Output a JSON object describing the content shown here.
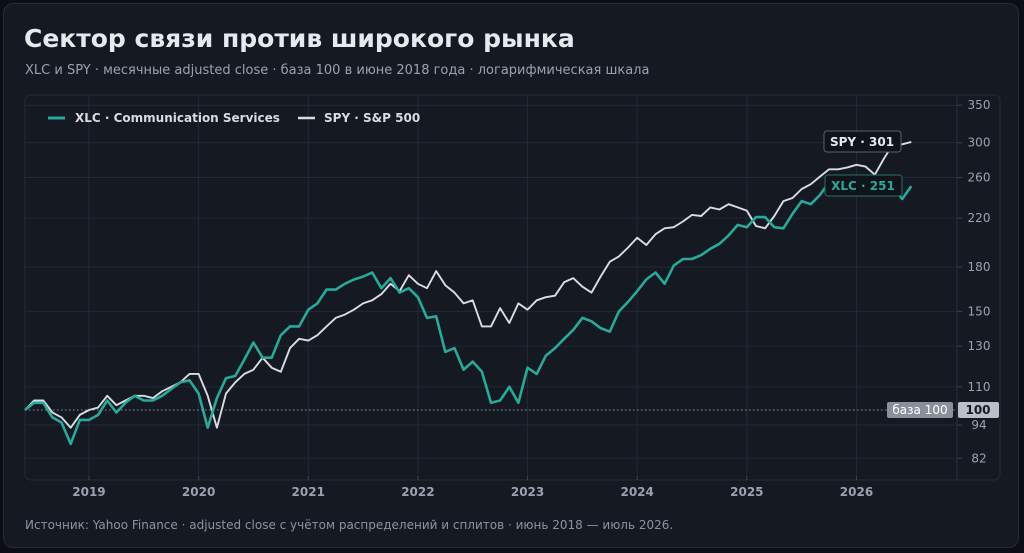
{
  "title": "Сектор связи против широкого рынка",
  "subtitle": "XLC и SPY · месячные adjusted close · база 100 в июне 2018 года · логарифмическая шкала",
  "footer": "Источник: Yahoo Finance · adjusted close с учётом распределений и сплитов · июнь 2018 — июль 2026.",
  "colors": {
    "background": "#151922",
    "xlc": "#2aa89a",
    "spy": "#d9dce3",
    "grid": "#232935",
    "text": "#9aa2b1"
  },
  "chart_data": {
    "type": "line",
    "y_scale": "log",
    "ylim": [
      75,
      365
    ],
    "xlim": [
      "2018-06",
      "2026-12"
    ],
    "grid": true,
    "legend_position": "top-left",
    "y_ticks": [
      82,
      94,
      100,
      110,
      130,
      150,
      180,
      220,
      260,
      300,
      350
    ],
    "y_tick_labels": [
      "82",
      "94",
      "100",
      "110",
      "130",
      "150",
      "180",
      "220",
      "260",
      "300",
      "350"
    ],
    "x_ticks": [
      "2019-01",
      "2020-01",
      "2021-01",
      "2022-01",
      "2023-01",
      "2024-01",
      "2025-01",
      "2026-01"
    ],
    "x_tick_labels": [
      "2019",
      "2020",
      "2021",
      "2022",
      "2023",
      "2024",
      "2025",
      "2026"
    ],
    "baseline": {
      "value": 100,
      "label": "база 100",
      "value_label": "100"
    },
    "dates": [
      "2018-06",
      "2018-07",
      "2018-08",
      "2018-09",
      "2018-10",
      "2018-11",
      "2018-12",
      "2019-01",
      "2019-02",
      "2019-03",
      "2019-04",
      "2019-05",
      "2019-06",
      "2019-07",
      "2019-08",
      "2019-09",
      "2019-10",
      "2019-11",
      "2019-12",
      "2020-01",
      "2020-02",
      "2020-03",
      "2020-04",
      "2020-05",
      "2020-06",
      "2020-07",
      "2020-08",
      "2020-09",
      "2020-10",
      "2020-11",
      "2020-12",
      "2021-01",
      "2021-02",
      "2021-03",
      "2021-04",
      "2021-05",
      "2021-06",
      "2021-07",
      "2021-08",
      "2021-09",
      "2021-10",
      "2021-11",
      "2021-12",
      "2022-01",
      "2022-02",
      "2022-03",
      "2022-04",
      "2022-05",
      "2022-06",
      "2022-07",
      "2022-08",
      "2022-09",
      "2022-10",
      "2022-11",
      "2022-12",
      "2023-01",
      "2023-02",
      "2023-03",
      "2023-04",
      "2023-05",
      "2023-06",
      "2023-07",
      "2023-08",
      "2023-09",
      "2023-10",
      "2023-11",
      "2023-12",
      "2024-01",
      "2024-02",
      "2024-03",
      "2024-04",
      "2024-05",
      "2024-06",
      "2024-07",
      "2024-08",
      "2024-09",
      "2024-10",
      "2024-11",
      "2024-12",
      "2025-01",
      "2025-02",
      "2025-03",
      "2025-04",
      "2025-05",
      "2025-06",
      "2025-07",
      "2025-08",
      "2025-09",
      "2025-10",
      "2025-11",
      "2025-12",
      "2026-01",
      "2026-02",
      "2026-03",
      "2026-04",
      "2026-05",
      "2026-06",
      "2026-07"
    ],
    "series": [
      {
        "name": "XLC · Communication Services",
        "key": "xlc",
        "color": "#2aa89a",
        "callout": "XLC · 251",
        "values": [
          100,
          103,
          103,
          97,
          95,
          87,
          96,
          96,
          98,
          104,
          99,
          103,
          106,
          104,
          104,
          106,
          109,
          112,
          113,
          107,
          93,
          105,
          114,
          115,
          123,
          132,
          124,
          124,
          136,
          141,
          141,
          151,
          155,
          164,
          164,
          168,
          171,
          173,
          176,
          165,
          172,
          162,
          165,
          159,
          146,
          147,
          127,
          129,
          118,
          122,
          117,
          103,
          104,
          110,
          103,
          119,
          116,
          125,
          129,
          134,
          139,
          146,
          144,
          140,
          138,
          150,
          156,
          163,
          171,
          176,
          168,
          181,
          186,
          186,
          189,
          194,
          198,
          205,
          214,
          212,
          221,
          221,
          212,
          211,
          224,
          236,
          233,
          242,
          255,
          254,
          258,
          262,
          258,
          259,
          254,
          250,
          238,
          251
        ]
      },
      {
        "name": "SPY · S&P 500",
        "key": "spy",
        "color": "#d9dce3",
        "callout": "SPY · 301",
        "values": [
          100,
          104,
          104,
          99,
          97,
          93,
          98,
          100,
          101,
          106,
          102,
          104,
          106,
          106,
          105,
          108,
          110,
          112,
          116,
          116,
          106,
          93,
          107,
          112,
          116,
          118,
          124,
          119,
          117,
          129,
          134,
          133,
          136,
          141,
          146,
          148,
          151,
          155,
          157,
          161,
          168,
          163,
          174,
          168,
          165,
          177,
          167,
          162,
          155,
          157,
          141,
          141,
          152,
          143,
          155,
          151,
          157,
          159,
          160,
          169,
          172,
          166,
          162,
          173,
          184,
          188,
          195,
          203,
          197,
          206,
          211,
          212,
          217,
          223,
          222,
          230,
          228,
          233,
          230,
          227,
          213,
          211,
          222,
          236,
          239,
          248,
          253,
          261,
          269,
          269,
          271,
          274,
          272,
          263,
          281,
          298,
          298,
          301
        ]
      }
    ]
  }
}
